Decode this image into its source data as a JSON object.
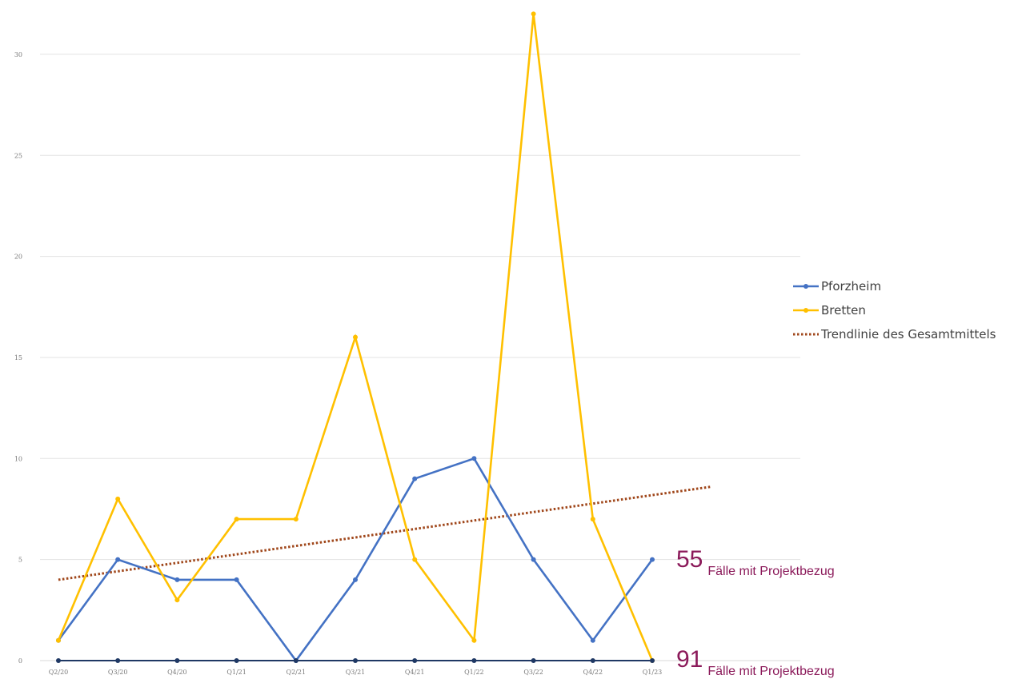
{
  "chart_data": {
    "type": "line",
    "categories": [
      "Q2/20",
      "Q3/20",
      "Q4/20",
      "Q1/21",
      "Q2/21",
      "Q3/21",
      "Q4/21",
      "Q1/22",
      "Q3/22",
      "Q4/22",
      "Q1/23"
    ],
    "yticks": [
      "0",
      "5",
      "10",
      "15",
      "20",
      "25",
      "30"
    ],
    "ylim": [
      0,
      32
    ],
    "grid": true,
    "legend_position": "right",
    "series": [
      {
        "name": "Pforzheim",
        "color": "#4472c4",
        "values": [
          1,
          5,
          4,
          4,
          0,
          4,
          9,
          10,
          5,
          1,
          5
        ]
      },
      {
        "name": "Bretten",
        "color": "#ffc000",
        "values": [
          1,
          8,
          3,
          7,
          7,
          16,
          5,
          1,
          32,
          7,
          0
        ]
      },
      {
        "color": "#1f3864",
        "values": [
          0,
          0,
          0,
          0,
          0,
          0,
          0,
          0,
          0,
          0,
          0
        ]
      }
    ],
    "trendline": {
      "name": "Trendlinie des Gesamtmittels",
      "color": "#a0471b",
      "start": 4.0,
      "end": 8.6
    }
  },
  "annotations": [
    {
      "number": "55",
      "text": "Fälle mit Projektbezug"
    },
    {
      "number": "91",
      "text": "Fälle mit Projektbezug"
    }
  ]
}
